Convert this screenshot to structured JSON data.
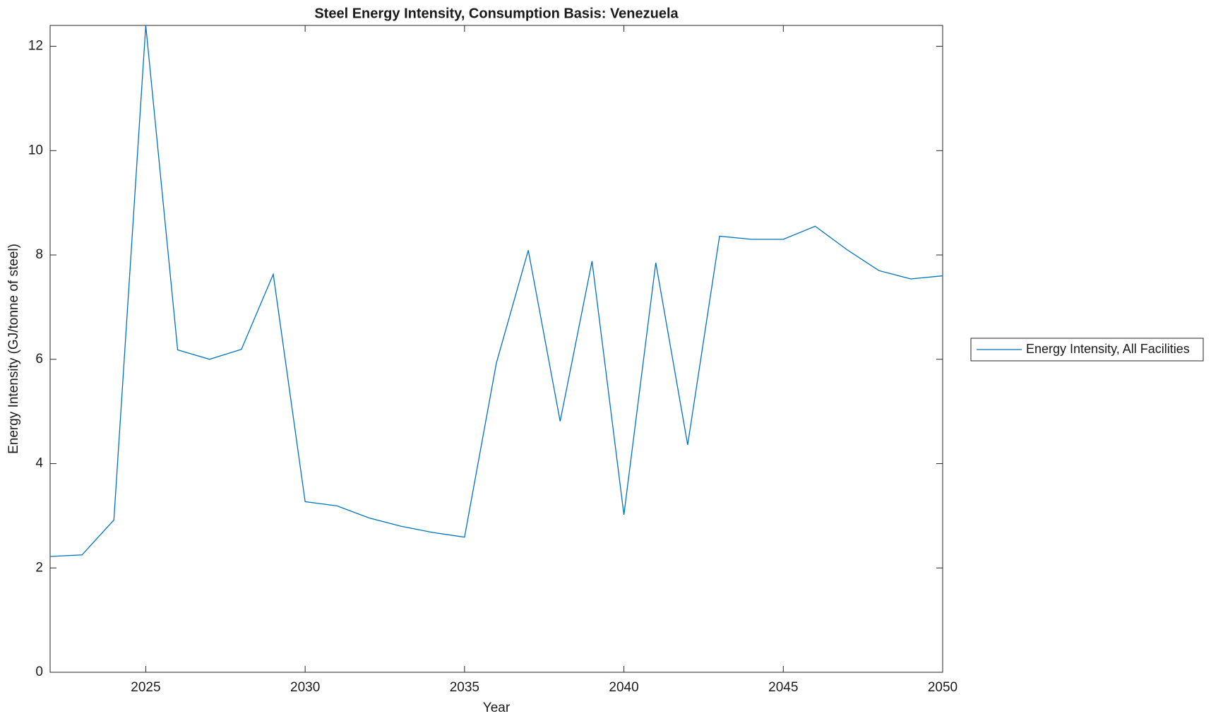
{
  "chart_data": {
    "type": "line",
    "title": "Steel Energy Intensity, Consumption Basis: Venezuela",
    "x_label": "Year",
    "y_label": "Energy Intensity (GJ/tonne of steel)",
    "x": [
      2022,
      2023,
      2024,
      2025,
      2026,
      2027,
      2028,
      2029,
      2030,
      2031,
      2032,
      2033,
      2034,
      2035,
      2036,
      2037,
      2038,
      2039,
      2040,
      2041,
      2042,
      2043,
      2044,
      2045,
      2046,
      2047,
      2048,
      2049,
      2050
    ],
    "series": [
      {
        "name": "Energy Intensity, All Facilities",
        "color": "#0072bd",
        "values": [
          2.22,
          2.25,
          2.92,
          12.4,
          6.18,
          6.0,
          6.19,
          7.63,
          3.27,
          3.19,
          2.96,
          2.8,
          2.68,
          2.59,
          5.93,
          8.09,
          4.81,
          7.88,
          3.02,
          7.85,
          4.36,
          8.36,
          8.3,
          8.3,
          8.55,
          8.1,
          7.7,
          7.54,
          7.6
        ]
      }
    ],
    "xlim": [
      2022,
      2050
    ],
    "xticks": [
      2025,
      2030,
      2035,
      2040,
      2045,
      2050
    ],
    "ylim": [
      0,
      12.4
    ],
    "yticks": [
      0,
      2,
      4,
      6,
      8,
      10,
      12
    ],
    "legend": "right"
  }
}
